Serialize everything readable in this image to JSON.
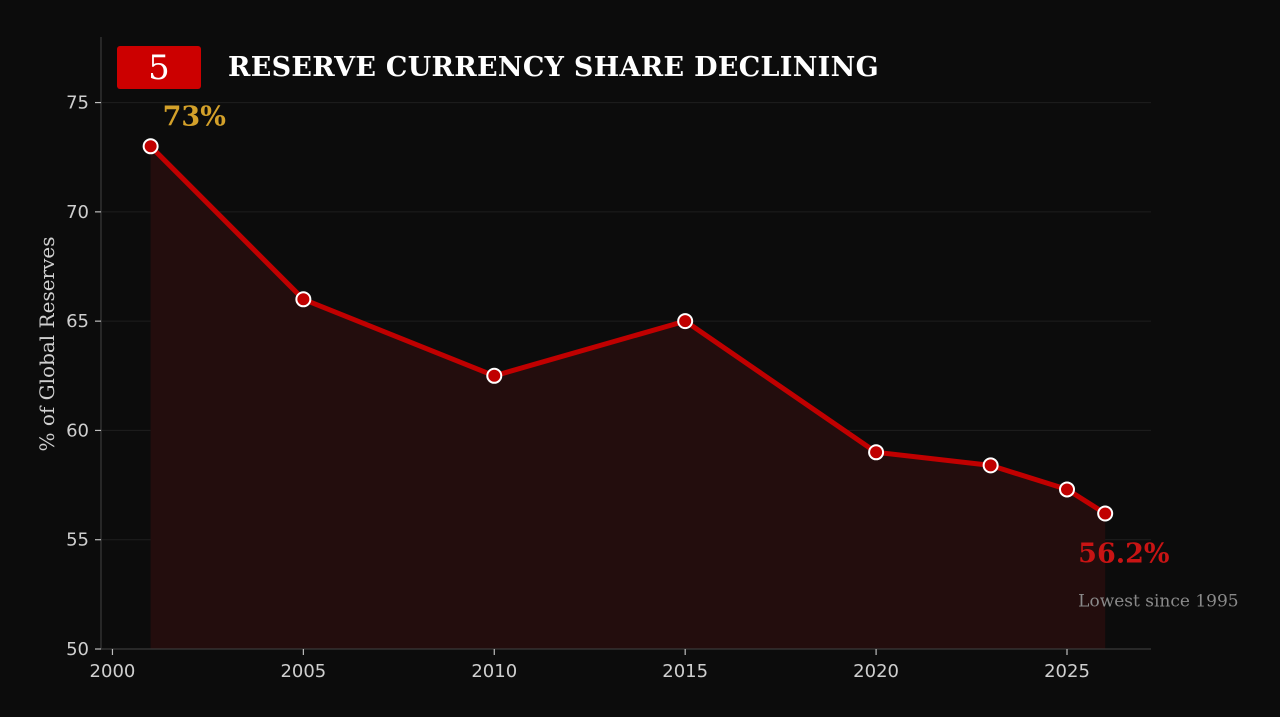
{
  "badge": {
    "number": "5"
  },
  "colors": {
    "background": "#0c0c0c",
    "line": "#c00000",
    "area": "#230d0d",
    "marker_fill": "#c00000",
    "marker_stroke": "#ffffff",
    "badge": "#cc0000",
    "start_annotation": "#d4a12a",
    "end_annotation": "#c81414"
  },
  "chart_data": {
    "type": "line",
    "title": "RESERVE CURRENCY SHARE DECLINING",
    "xlabel": "",
    "ylabel": "% of Global Reserves",
    "x": [
      2001,
      2005,
      2010,
      2015,
      2020,
      2023,
      2025,
      2026
    ],
    "series": [
      {
        "values": [
          73,
          66,
          62.5,
          65,
          59,
          58.4,
          57.3,
          56.2
        ]
      }
    ],
    "xlim": [
      1999.7,
      2027.2
    ],
    "ylim": [
      50,
      78
    ],
    "xticks": [
      "2000",
      "2005",
      "2010",
      "2015",
      "2020",
      "2025"
    ],
    "xtick_values": [
      2000,
      2005,
      2010,
      2015,
      2020,
      2025
    ],
    "yticks": [
      "50",
      "55",
      "60",
      "65",
      "70",
      "75"
    ],
    "ytick_values": [
      50,
      55,
      60,
      65,
      70,
      75
    ],
    "grid": true,
    "annotations": {
      "start": {
        "text": "73%",
        "x": 2001,
        "y": 73
      },
      "end": {
        "text": "56.2%",
        "x": 2026,
        "y": 56.2
      },
      "end_note": {
        "text": "Lowest since 1995"
      }
    }
  }
}
